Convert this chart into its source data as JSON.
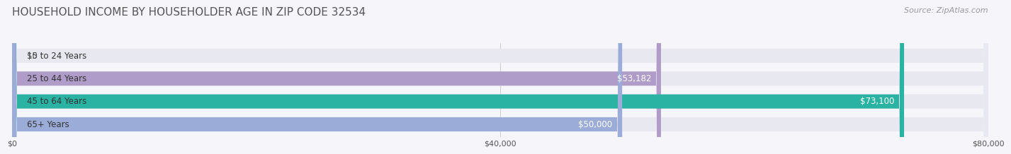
{
  "title": "HOUSEHOLD INCOME BY HOUSEHOLDER AGE IN ZIP CODE 32534",
  "source": "Source: ZipAtlas.com",
  "categories": [
    "15 to 24 Years",
    "25 to 44 Years",
    "45 to 64 Years",
    "65+ Years"
  ],
  "values": [
    0,
    53182,
    73100,
    50000
  ],
  "bar_colors": [
    "#a8d0e6",
    "#b09cc8",
    "#2ab3a3",
    "#9bacd8"
  ],
  "bar_bg_color": "#e8e8f0",
  "xlim": [
    0,
    80000
  ],
  "xticks": [
    0,
    40000,
    80000
  ],
  "xtick_labels": [
    "$0",
    "$40,000",
    "$80,000"
  ],
  "value_labels": [
    "$0",
    "$53,182",
    "$73,100",
    "$50,000"
  ],
  "title_fontsize": 11,
  "source_fontsize": 8,
  "label_fontsize": 8.5,
  "tick_fontsize": 8,
  "bar_height": 0.62,
  "background_color": "#f5f5fa"
}
